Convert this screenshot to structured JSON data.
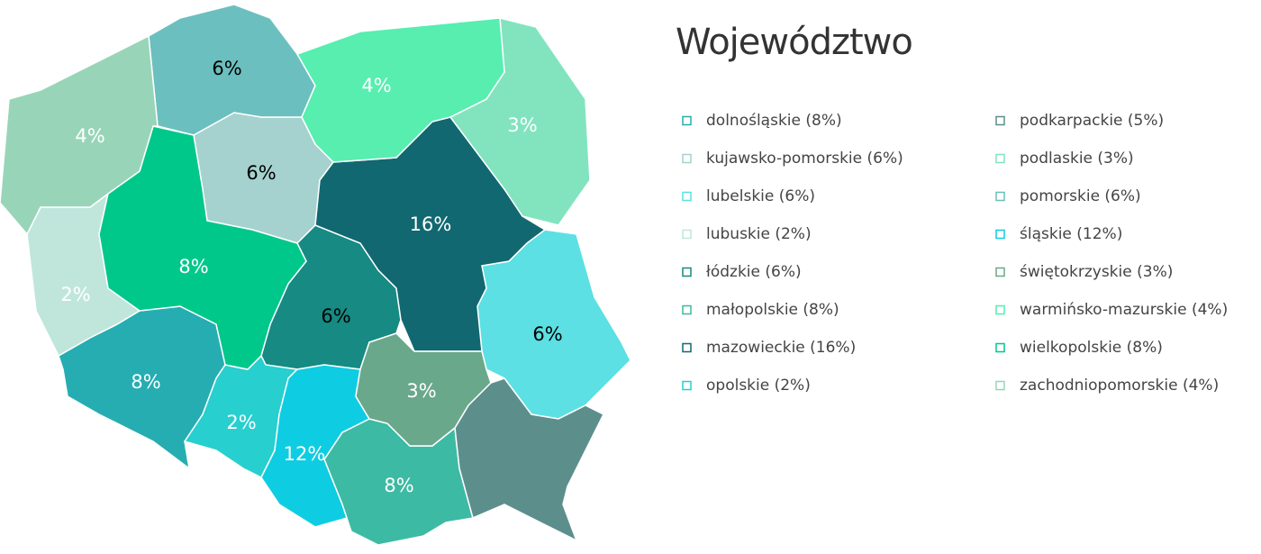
{
  "title": "Województwo",
  "regions": [
    {
      "legend": "dolnośląskie (8%)",
      "value": 8,
      "value_label": "8%",
      "color": "#26adb2",
      "label_color": "#ffffff"
    },
    {
      "legend": "kujawsko-pomorskie (6%)",
      "value": 6,
      "value_label": "6%",
      "color": "#a5d2cf",
      "label_color": "#000000"
    },
    {
      "legend": "lubelskie (6%)",
      "value": 6,
      "value_label": "6%",
      "color": "#5ce0e3",
      "label_color": "#000000"
    },
    {
      "legend": "lubuskie (2%)",
      "value": 2,
      "value_label": "2%",
      "color": "#c0e6dc",
      "label_color": "#ffffff"
    },
    {
      "legend": "łódzkie (6%)",
      "value": 6,
      "value_label": "6%",
      "color": "#168a83",
      "label_color": "#000000"
    },
    {
      "legend": "małopolskie (8%)",
      "value": 8,
      "value_label": "8%",
      "color": "#3dbaa3",
      "label_color": "#ffffff"
    },
    {
      "legend": "mazowieckie (16%)",
      "value": 16,
      "value_label": "16%",
      "color": "#126870",
      "label_color": "#ffffff"
    },
    {
      "legend": "opolskie (2%)",
      "value": 2,
      "value_label": "2%",
      "color": "#27cfcf",
      "label_color": "#ffffff"
    },
    {
      "legend": "podkarpackie (5%)",
      "value": 5,
      "color": "#5c8f8c"
    },
    {
      "legend": "podlaskie (3%)",
      "value": 3,
      "value_label": "3%",
      "color": "#82e4bf",
      "label_color": "#ffffff"
    },
    {
      "legend": "pomorskie (6%)",
      "value": 6,
      "value_label": "6%",
      "color": "#6cbfbf",
      "label_color": "#000000"
    },
    {
      "legend": "śląskie (12%)",
      "value": 12,
      "value_label": "12%",
      "color": "#0ecde2",
      "label_color": "#ffffff"
    },
    {
      "legend": "świętokrzyskie (3%)",
      "value": 3,
      "value_label": "3%",
      "color": "#6aa88b",
      "label_color": "#ffffff"
    },
    {
      "legend": "warmińsko-mazurskie (4%)",
      "value": 4,
      "value_label": "4%",
      "color": "#57eeb0",
      "label_color": "#ffffff"
    },
    {
      "legend": "wielkopolskie (8%)",
      "value": 8,
      "value_label": "8%",
      "color": "#00c88a",
      "label_color": "#ffffff"
    },
    {
      "legend": "zachodniopomorskie (4%)",
      "value": 4,
      "value_label": "4%",
      "color": "#98d5b8",
      "label_color": "#ffffff"
    }
  ]
}
